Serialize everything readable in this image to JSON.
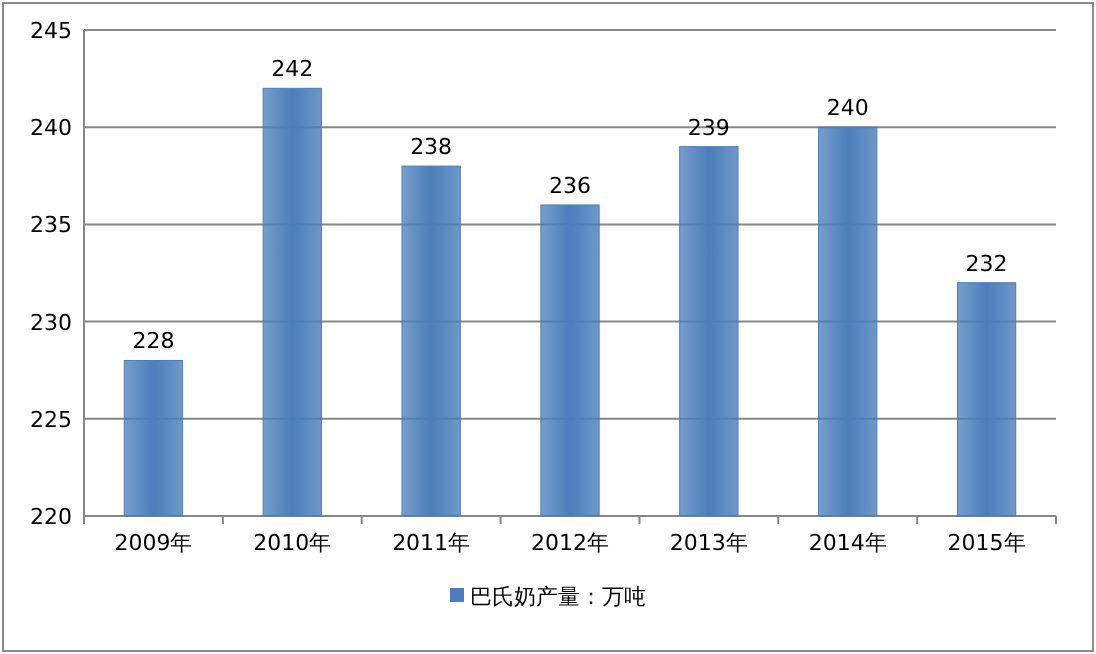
{
  "chart_data": {
    "type": "bar",
    "categories": [
      "2009年",
      "2010年",
      "2011年",
      "2012年",
      "2013年",
      "2014年",
      "2015年"
    ],
    "series": [
      {
        "name": "巴氏奶产量：万吨",
        "color": "#4a7ebb",
        "values": [
          228,
          242,
          238,
          236,
          239,
          240,
          232
        ]
      }
    ],
    "ylim": [
      220,
      245
    ],
    "yticks": [
      220,
      225,
      230,
      235,
      240,
      245
    ],
    "grid": "y",
    "legend": "bottom",
    "data_labels": true
  }
}
